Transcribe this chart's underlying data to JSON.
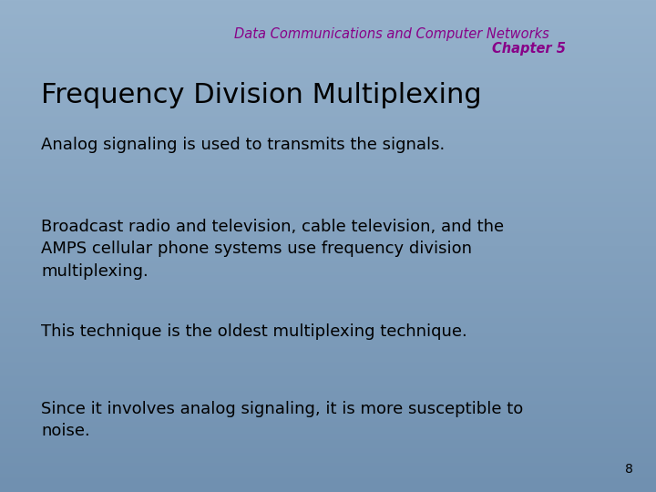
{
  "bg_color_top": "#96b2cc",
  "bg_color_bottom": "#7090b0",
  "header_line1": "Data Communications and Computer Networks",
  "header_line2": "Chapter 5",
  "header_color": "#880088",
  "title_text": "Frequency Division Multiplexing",
  "title_color": "#000000",
  "title_fontsize": 22,
  "body_color": "#000000",
  "body_fontsize": 13,
  "bullets": [
    "Analog signaling is used to transmits the signals.",
    "Broadcast radio and television, cable television, and the\nAMPS cellular phone systems use frequency division\nmultiplexing.",
    "This technique is the oldest multiplexing technique.",
    "Since it involves analog signaling, it is more susceptible to\nnoise."
  ],
  "page_number": "8",
  "page_number_color": "#000000",
  "page_number_fontsize": 10,
  "header_fontsize": 10.5
}
